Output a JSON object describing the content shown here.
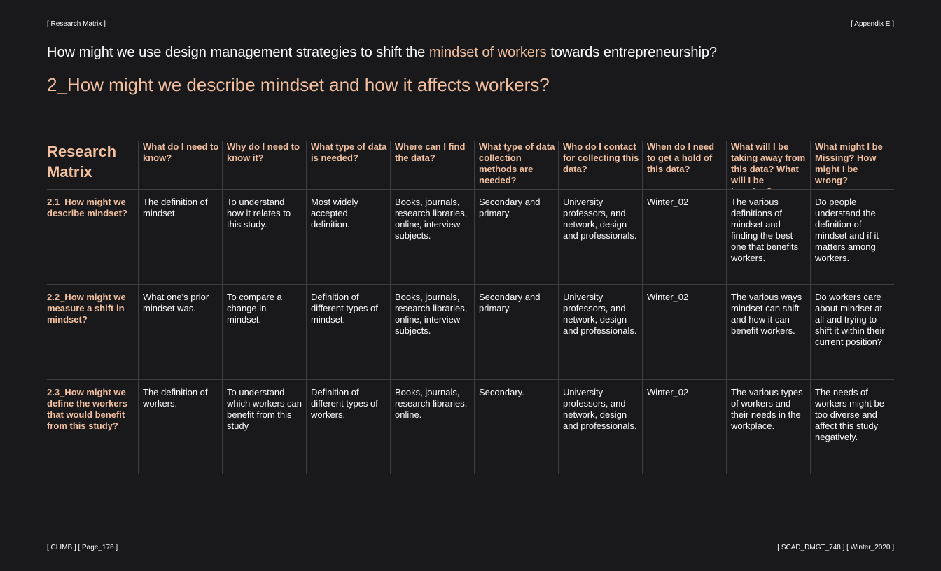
{
  "header": {
    "left": "[ Research Matrix ]",
    "right": "[ Appendix E ]"
  },
  "question": {
    "before": "How might we use design management strategies to shift the ",
    "highlight": "mindset of workers",
    "after": " towards entrepreneurship?"
  },
  "subquestion": "2_How might we describe mindset and how it affects workers?",
  "matrix": {
    "title": "Research Matrix",
    "columns": [
      "What do I need to know?",
      "Why do I need to know it?",
      "What type of data is needed?",
      "Where can I find the data?",
      "What type of data collection methods are needed?",
      "Who do I contact for collecting this data?",
      "When do I need to get a hold of this data?",
      "What will I be taking away from this data? What will I be learning?",
      "What might I be Missing? How might I be wrong?"
    ],
    "rows": [
      {
        "label": "2.1_How might we describe mindset?",
        "cells": [
          "The definition of mindset.",
          "To understand how it relates to this study.",
          "Most widely accepted definition.",
          "Books, journals, research libraries, online, interview subjects.",
          "Secondary and primary.",
          "University professors, and network, design and professionals.",
          "Winter_02",
          "The various definitions of mindset and finding the best one that benefits workers.",
          "Do people understand the definition of mindset and if it matters among workers."
        ]
      },
      {
        "label": "2.2_How might we measure a shift in mindset?",
        "cells": [
          "What one's prior mindset was.",
          "To compare a change in mindset.",
          "Definition of different types of mindset.",
          "Books, journals, research libraries, online, interview subjects.",
          "Secondary and primary.",
          "University professors, and network, design and professionals.",
          "Winter_02",
          "The various ways mindset can shift and how it can benefit workers.",
          "Do workers care about mindset at all and trying to shift it within their current position?"
        ]
      },
      {
        "label": "2.3_How might we define the workers that would benefit from this study?",
        "cells": [
          "The definition of workers.",
          "To understand which workers can benefit from this study",
          "Definition of different types of workers.",
          "Books, journals, research libraries, online.",
          "Secondary.",
          "University professors, and network, design and professionals.",
          "Winter_02",
          "The various types of workers and their needs in the workplace.",
          "The needs of workers might be too diverse and affect this study negatively."
        ]
      }
    ]
  },
  "footer": {
    "left": "[ CLIMB ] [ Page_176 ]",
    "right": "[ SCAD_DMGT_748 ] [ Winter_2020 ]"
  },
  "colors": {
    "background": "#19191b",
    "accent": "#f2c0a0",
    "text": "#ffffff",
    "rule": "#3f3f43"
  }
}
